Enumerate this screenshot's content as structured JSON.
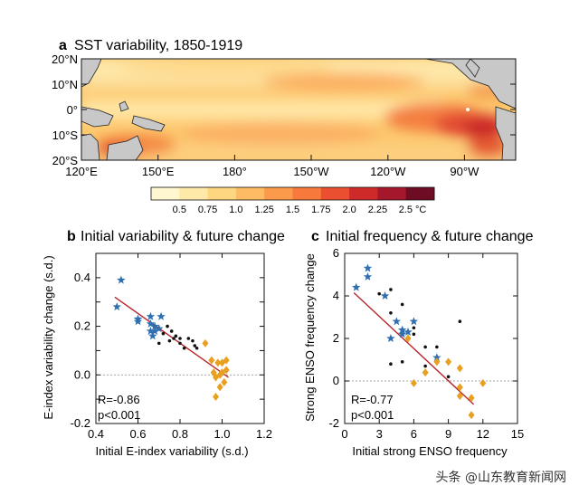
{
  "panel_a": {
    "label": "a",
    "title": "SST variability, 1850-1919",
    "lat_ticks": [
      "20°N",
      "10°N",
      "0°",
      "10°S",
      "20°S"
    ],
    "lon_ticks": [
      "120°E",
      "150°E",
      "180°",
      "150°W",
      "120°W",
      "90°W"
    ],
    "colorbar": {
      "ticks": [
        "0.5",
        "0.75",
        "1.0",
        "1.25",
        "1.5",
        "1.75",
        "2.0",
        "2.25",
        "2.5 °C"
      ],
      "colors": [
        "#fff7d0",
        "#ffe9a8",
        "#fed67f",
        "#fdbb63",
        "#fc9a4b",
        "#f77a3c",
        "#ea4f30",
        "#cf2a2a",
        "#a5182b",
        "#6e0c24"
      ]
    }
  },
  "panel_b": {
    "label": "b",
    "title": "Initial variability & future change",
    "xlabel": "Initial E-index variability (s.d.)",
    "ylabel": "E-index variability change (s.d.)",
    "x_ticks": [
      "0.4",
      "0.8",
      "1.2"
    ],
    "x_ticks2": [
      "0.6",
      "1.0"
    ],
    "y_ticks": [
      "0.4",
      "0.2",
      "0.0",
      "-0.2"
    ],
    "stat_r": "R=-0.86",
    "stat_p": "p<0.001"
  },
  "panel_c": {
    "label": "c",
    "title": "Initial frequency & future change",
    "xlabel": "Initial strong ENSO frequency",
    "ylabel": "Strong ENSO frequency change",
    "x_ticks": [
      "0",
      "3",
      "6",
      "9",
      "12",
      "15"
    ],
    "y_ticks": [
      "6",
      "4",
      "2",
      "0",
      "-2"
    ],
    "stat_r": "R=-0.77",
    "stat_p": "p<0.001"
  },
  "watermark": "头条 @山东教育新闻网",
  "chart_data": [
    {
      "type": "heatmap",
      "title": "SST variability, 1850-1919",
      "xlabel": "",
      "ylabel": "",
      "lat_range": [
        -20,
        20
      ],
      "lon_range": [
        120,
        290
      ],
      "units": "°C",
      "levels": [
        0.5,
        0.75,
        1.0,
        1.25,
        1.5,
        1.75,
        2.0,
        2.25,
        2.5
      ]
    },
    {
      "type": "scatter",
      "title": "Initial variability & future change",
      "xlabel": "Initial E-index variability (s.d.)",
      "ylabel": "E-index variability change (s.d.)",
      "xlim": [
        0.4,
        1.2
      ],
      "ylim": [
        -0.2,
        0.5
      ],
      "series": [
        {
          "marker": "star",
          "color": "#2f6fb0",
          "points": [
            [
              0.52,
              0.39
            ],
            [
              0.5,
              0.28
            ],
            [
              0.6,
              0.23
            ],
            [
              0.6,
              0.22
            ],
            [
              0.66,
              0.24
            ],
            [
              0.66,
              0.21
            ],
            [
              0.66,
              0.18
            ],
            [
              0.67,
              0.16
            ],
            [
              0.68,
              0.2
            ],
            [
              0.68,
              0.18
            ],
            [
              0.7,
              0.19
            ],
            [
              0.71,
              0.24
            ]
          ]
        },
        {
          "marker": "dot",
          "color": "#111111",
          "points": [
            [
              0.7,
              0.13
            ],
            [
              0.72,
              0.17
            ],
            [
              0.74,
              0.2
            ],
            [
              0.75,
              0.14
            ],
            [
              0.76,
              0.18
            ],
            [
              0.77,
              0.15
            ],
            [
              0.78,
              0.16
            ],
            [
              0.8,
              0.13
            ],
            [
              0.8,
              0.15
            ],
            [
              0.82,
              0.11
            ],
            [
              0.84,
              0.15
            ],
            [
              0.86,
              0.14
            ],
            [
              0.87,
              0.12
            ],
            [
              0.88,
              0.11
            ]
          ]
        },
        {
          "marker": "diamond",
          "color": "#e8a020",
          "points": [
            [
              0.92,
              0.13
            ],
            [
              0.95,
              0.06
            ],
            [
              0.96,
              0.01
            ],
            [
              0.97,
              -0.01
            ],
            [
              0.98,
              0.05
            ],
            [
              0.99,
              0.0
            ],
            [
              0.99,
              -0.05
            ],
            [
              1.0,
              0.05
            ],
            [
              1.0,
              0.01
            ],
            [
              1.01,
              -0.03
            ],
            [
              1.02,
              0.02
            ],
            [
              1.02,
              0.06
            ],
            [
              0.97,
              -0.09
            ]
          ]
        }
      ],
      "fit_line": [
        [
          0.49,
          0.32
        ],
        [
          1.03,
          -0.01
        ]
      ],
      "annotations": [
        "R=-0.86",
        "p<0.001"
      ]
    },
    {
      "type": "scatter",
      "title": "Initial frequency & future change",
      "xlabel": "Initial strong ENSO frequency",
      "ylabel": "Strong ENSO frequency change",
      "xlim": [
        0,
        15
      ],
      "ylim": [
        -2,
        6
      ],
      "series": [
        {
          "marker": "star",
          "color": "#2f6fb0",
          "points": [
            [
              2,
              5.3
            ],
            [
              2,
              4.9
            ],
            [
              1,
              4.4
            ],
            [
              3.5,
              4.0
            ],
            [
              4.5,
              2.8
            ],
            [
              5,
              2.4
            ],
            [
              5,
              2.2
            ],
            [
              5.5,
              2.3
            ],
            [
              6,
              2.8
            ],
            [
              4,
              2.0
            ],
            [
              8,
              1.1
            ]
          ]
        },
        {
          "marker": "dot",
          "color": "#111111",
          "points": [
            [
              3,
              4.1
            ],
            [
              4,
              4.3
            ],
            [
              4,
              3.2
            ],
            [
              5,
              3.6
            ],
            [
              6,
              2.5
            ],
            [
              6,
              2.2
            ],
            [
              7,
              1.6
            ],
            [
              7,
              0.7
            ],
            [
              8,
              1.6
            ],
            [
              9,
              0.2
            ],
            [
              10,
              2.8
            ],
            [
              4,
              0.8
            ],
            [
              5,
              0.9
            ]
          ]
        },
        {
          "marker": "diamond",
          "color": "#e8a020",
          "points": [
            [
              5.5,
              2.0
            ],
            [
              6,
              -0.1
            ],
            [
              7,
              0.4
            ],
            [
              8,
              0.9
            ],
            [
              9,
              0.9
            ],
            [
              10,
              -0.3
            ],
            [
              10,
              -0.7
            ],
            [
              10,
              0.6
            ],
            [
              11,
              -0.8
            ],
            [
              11,
              -1.6
            ],
            [
              12,
              -0.1
            ]
          ]
        }
      ],
      "fit_line": [
        [
          0.8,
          4.15
        ],
        [
          11.2,
          -1.1
        ]
      ],
      "annotations": [
        "R=-0.77",
        "p<0.001"
      ]
    }
  ]
}
